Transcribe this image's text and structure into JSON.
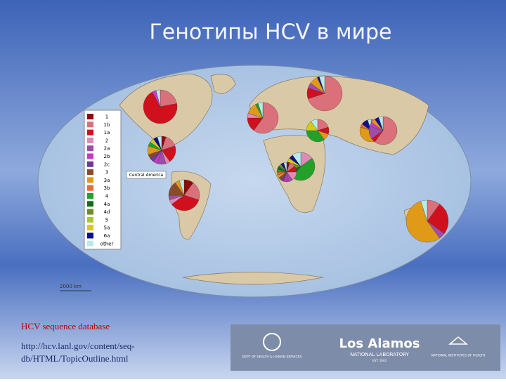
{
  "title": "Генотипы HCV в мире",
  "map": {
    "legend": [
      {
        "label": "1",
        "color": "#8b0a0a"
      },
      {
        "label": "1b",
        "color": "#d9707a"
      },
      {
        "label": "1a",
        "color": "#d0101c"
      },
      {
        "label": "2",
        "color": "#e08ab8"
      },
      {
        "label": "2a",
        "color": "#a04ca8"
      },
      {
        "label": "2b",
        "color": "#c838c8"
      },
      {
        "label": "2c",
        "color": "#6e3a96"
      },
      {
        "label": "3",
        "color": "#8b4a2a"
      },
      {
        "label": "3a",
        "color": "#e09a18"
      },
      {
        "label": "3b",
        "color": "#e86a3a"
      },
      {
        "label": "4",
        "color": "#23a02a"
      },
      {
        "label": "4a",
        "color": "#146a1a"
      },
      {
        "label": "4d",
        "color": "#6b8e23"
      },
      {
        "label": "5",
        "color": "#a8c830"
      },
      {
        "label": "5a",
        "color": "#d8c818"
      },
      {
        "label": "6a",
        "color": "#10108a"
      },
      {
        "label": "other",
        "color": "#b8eaea"
      }
    ],
    "region_label": "Central America",
    "scale_label": "2000 km",
    "pies": [
      {
        "values": [
          0,
          22,
          70,
          0,
          0,
          4,
          0,
          0,
          0,
          0,
          0,
          0,
          0,
          0,
          0,
          0,
          4
        ]
      },
      {
        "values": [
          5,
          15,
          20,
          5,
          10,
          5,
          5,
          5,
          10,
          0,
          5,
          0,
          0,
          0,
          5,
          5,
          5
        ]
      },
      {
        "values": [
          10,
          20,
          35,
          5,
          5,
          0,
          0,
          15,
          5,
          0,
          0,
          0,
          0,
          0,
          0,
          0,
          5
        ]
      },
      {
        "values": [
          0,
          70,
          10,
          0,
          5,
          0,
          0,
          0,
          8,
          0,
          0,
          0,
          0,
          0,
          0,
          2,
          5
        ]
      },
      {
        "values": [
          0,
          60,
          15,
          5,
          0,
          0,
          0,
          0,
          12,
          0,
          3,
          0,
          0,
          0,
          0,
          0,
          5
        ]
      },
      {
        "values": [
          0,
          20,
          10,
          0,
          0,
          0,
          0,
          0,
          10,
          0,
          35,
          0,
          0,
          0,
          15,
          0,
          10
        ]
      },
      {
        "values": [
          0,
          0,
          0,
          15,
          0,
          0,
          0,
          0,
          0,
          0,
          45,
          10,
          10,
          0,
          5,
          5,
          10
        ]
      },
      {
        "values": [
          5,
          10,
          10,
          15,
          10,
          5,
          5,
          5,
          5,
          5,
          5,
          5,
          5,
          0,
          0,
          5,
          5
        ]
      },
      {
        "values": [
          0,
          25,
          10,
          5,
          5,
          0,
          0,
          0,
          35,
          5,
          0,
          0,
          0,
          0,
          0,
          10,
          5
        ]
      },
      {
        "values": [
          0,
          60,
          5,
          0,
          15,
          5,
          0,
          0,
          5,
          0,
          0,
          0,
          0,
          0,
          0,
          5,
          5
        ]
      },
      {
        "values": [
          0,
          10,
          25,
          0,
          5,
          0,
          0,
          0,
          55,
          0,
          0,
          0,
          0,
          0,
          0,
          0,
          5
        ]
      }
    ]
  },
  "link": {
    "title": "HCV sequence database",
    "url_lines": [
      "http://hcv.lanl.gov/content/seq-",
      "db/HTML/TopicOutline.html"
    ]
  },
  "logos": {
    "hhs": "DEPT OF HEALTH & HUMAN SERVICES",
    "lanl": "Los Alamos",
    "lanl_sub": "NATIONAL LABORATORY",
    "lanl_est": "EST. 1943",
    "nih": "NATIONAL INSTITUTES OF HEALTH"
  }
}
